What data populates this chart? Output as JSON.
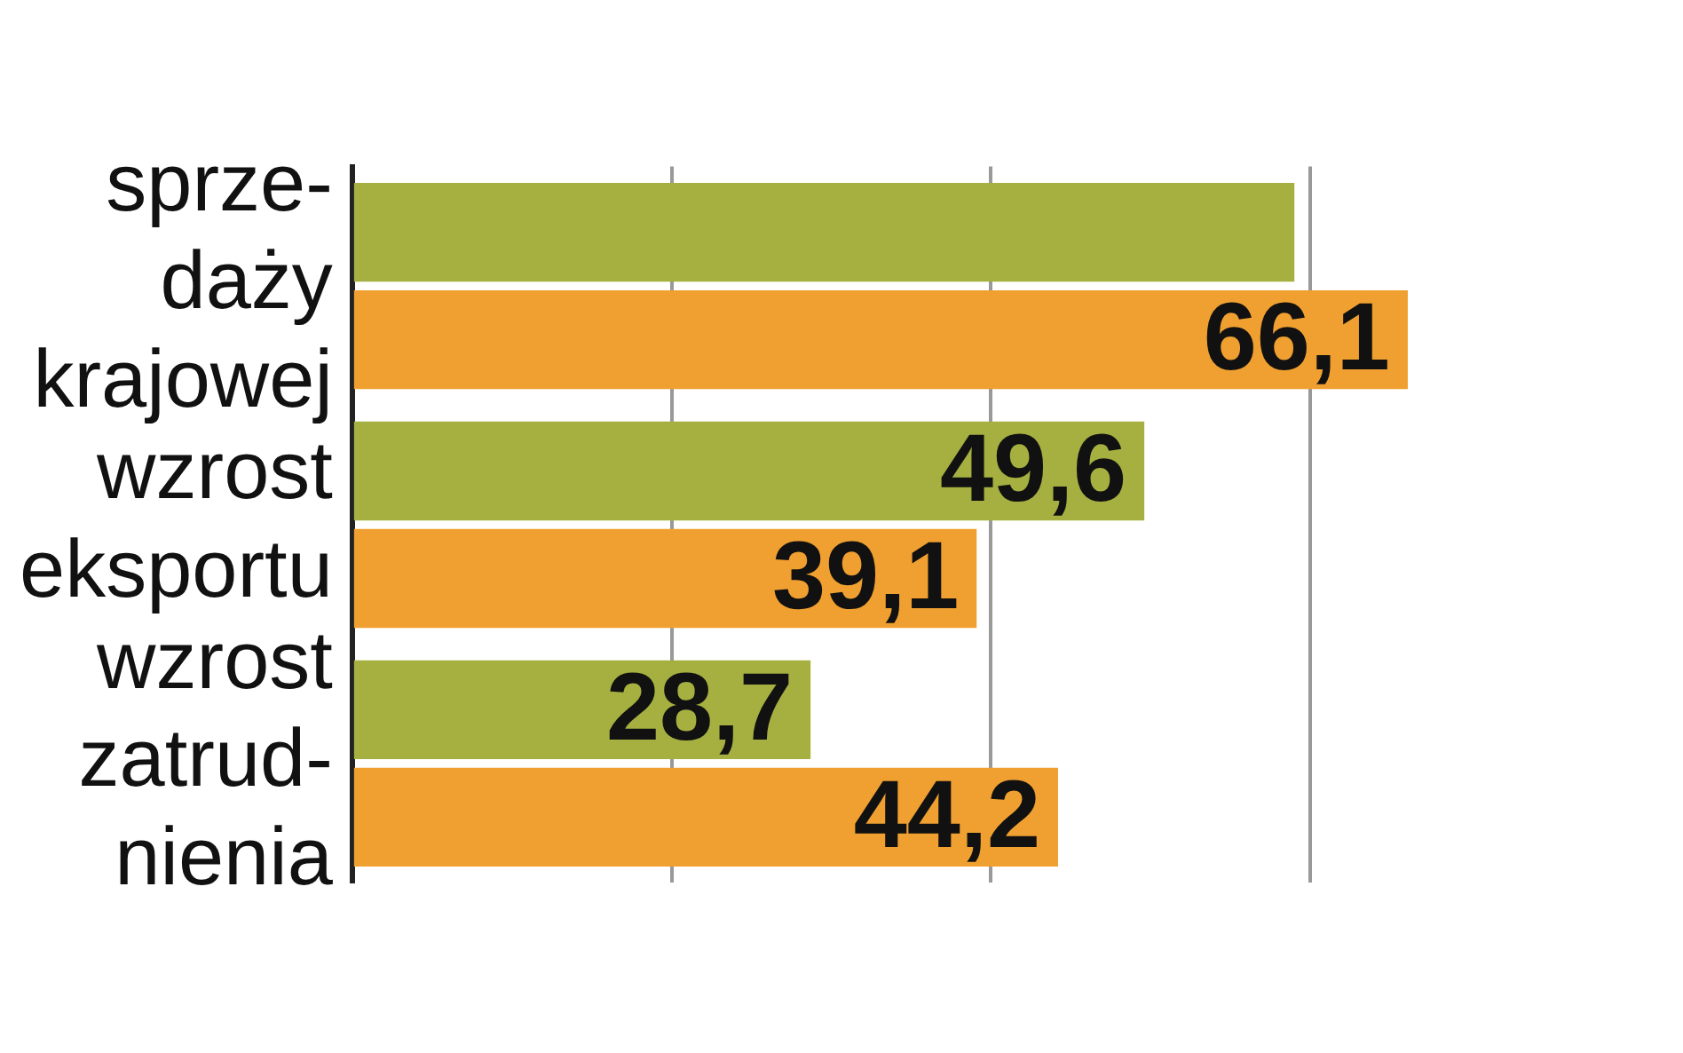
{
  "chart_data": {
    "type": "bar",
    "orientation": "horizontal",
    "categories": [
      "sprze- daży krajowej",
      "wzrost eksportu",
      "wzrost zatrud- nienia"
    ],
    "series": [
      {
        "color": "#a5b040",
        "values": [
          59,
          49.6,
          28.7
        ],
        "value_labels": [
          null,
          "49,6",
          "28,7"
        ]
      },
      {
        "color": "#f0a030",
        "values": [
          66.1,
          39.1,
          44.2
        ],
        "value_labels": [
          "66,1",
          "39,1",
          "44,2"
        ]
      }
    ],
    "xticks": [
      {
        "value": 0,
        "label": null
      },
      {
        "value": 20,
        "label": null
      },
      {
        "value": 40,
        "label": null
      },
      {
        "value": 60,
        "label": null
      }
    ],
    "grid": "x",
    "legend": false
  }
}
